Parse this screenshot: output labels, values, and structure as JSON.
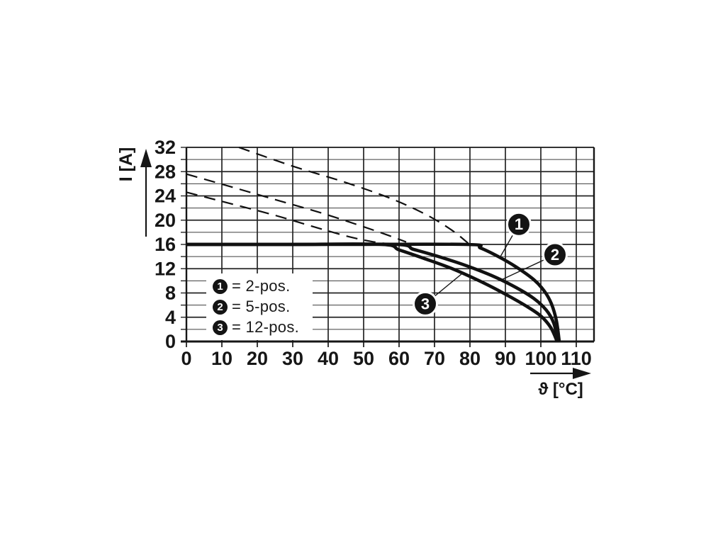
{
  "colors": {
    "background": "#ffffff",
    "ink": "#161616",
    "grid_major": "#242424",
    "grid_minor": "#3d3d3d",
    "curve": "#111111",
    "callout_fill": "#141414",
    "callout_text": "#ffffff"
  },
  "y_axis": {
    "label": "I [A]",
    "ticks": [
      "0",
      "4",
      "8",
      "12",
      "16",
      "20",
      "24",
      "28",
      "32"
    ]
  },
  "x_axis": {
    "label": "ϑ [°C]",
    "ticks": [
      "0",
      "10",
      "20",
      "30",
      "40",
      "50",
      "60",
      "70",
      "80",
      "90",
      "100",
      "110"
    ]
  },
  "legend": {
    "items": [
      {
        "num": "1",
        "label": "= 2-pos."
      },
      {
        "num": "2",
        "label": "= 5-pos."
      },
      {
        "num": "3",
        "label": "= 12-pos."
      }
    ]
  },
  "callouts": [
    {
      "num": "1",
      "circle": [
        93.8,
        19.3
      ],
      "target": [
        88.5,
        13.9
      ]
    },
    {
      "num": "2",
      "circle": [
        104.0,
        14.3
      ],
      "target": [
        89.0,
        10.2
      ]
    },
    {
      "num": "3",
      "circle": [
        67.4,
        6.2
      ],
      "target": [
        78.0,
        11.3
      ]
    }
  ],
  "chart_data": {
    "type": "line",
    "title": "",
    "xlabel": "ϑ [°C]",
    "ylabel": "I [A]",
    "xlim": [
      0,
      115
    ],
    "ylim": [
      0,
      32
    ],
    "x_tick_values": [
      0,
      10,
      20,
      30,
      40,
      50,
      60,
      70,
      80,
      90,
      100,
      110
    ],
    "y_tick_values": [
      0,
      4,
      8,
      12,
      16,
      20,
      24,
      28,
      32
    ],
    "y_minor_step": 2,
    "grid": "on",
    "legend_position": "inside-lower-left",
    "series": [
      {
        "name": "2-pos.",
        "callout": "1",
        "style": "solid",
        "points": [
          [
            0,
            16
          ],
          [
            40,
            16
          ],
          [
            79,
            16
          ],
          [
            83,
            15.4
          ],
          [
            88,
            14.0
          ],
          [
            93,
            12.3
          ],
          [
            98,
            10.2
          ],
          [
            101,
            8.3
          ],
          [
            103,
            6.2
          ],
          [
            104.4,
            3.4
          ],
          [
            105.2,
            0
          ]
        ]
      },
      {
        "name": "5-pos.",
        "callout": "2",
        "style": "solid",
        "points": [
          [
            0,
            16
          ],
          [
            30,
            16
          ],
          [
            59,
            16
          ],
          [
            64,
            15.2
          ],
          [
            70,
            14.2
          ],
          [
            78,
            12.7
          ],
          [
            86,
            10.9
          ],
          [
            93,
            8.9
          ],
          [
            98,
            7.1
          ],
          [
            101.5,
            5.2
          ],
          [
            103.6,
            3.1
          ],
          [
            104.9,
            0
          ]
        ]
      },
      {
        "name": "12-pos.",
        "callout": "3",
        "style": "solid",
        "points": [
          [
            0,
            16
          ],
          [
            28,
            16
          ],
          [
            55,
            16
          ],
          [
            60,
            15.1
          ],
          [
            67,
            13.7
          ],
          [
            75,
            12.0
          ],
          [
            83,
            9.9
          ],
          [
            90,
            7.8
          ],
          [
            96,
            5.8
          ],
          [
            100,
            4.2
          ],
          [
            102.8,
            2.3
          ],
          [
            104.6,
            0
          ]
        ]
      },
      {
        "name": "2-pos. limit (dashed)",
        "style": "dashed",
        "points": [
          [
            14.8,
            32
          ],
          [
            30,
            28.9
          ],
          [
            45,
            26.2
          ],
          [
            58,
            23.5
          ],
          [
            68,
            20.8
          ],
          [
            75,
            18.3
          ],
          [
            79.5,
            16.2
          ]
        ]
      },
      {
        "name": "5-pos. limit (dashed)",
        "style": "dashed",
        "points": [
          [
            0,
            27.6
          ],
          [
            12,
            25.6
          ],
          [
            25,
            23.4
          ],
          [
            38,
            21.2
          ],
          [
            48,
            19.3
          ],
          [
            56,
            17.7
          ],
          [
            62,
            16.4
          ]
        ]
      },
      {
        "name": "12-pos. limit (dashed)",
        "style": "dashed",
        "points": [
          [
            0,
            24.6
          ],
          [
            12,
            22.8
          ],
          [
            25,
            20.8
          ],
          [
            36,
            18.9
          ],
          [
            45,
            17.4
          ],
          [
            52,
            16.5
          ],
          [
            57,
            16.1
          ]
        ]
      }
    ]
  }
}
